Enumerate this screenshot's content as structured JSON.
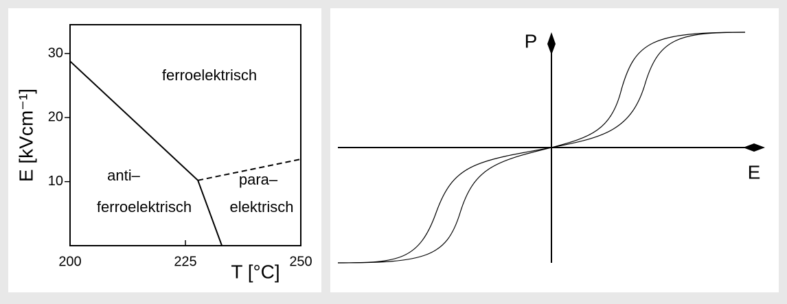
{
  "chart_data": [
    {
      "type": "line",
      "series": [
        {
          "color": "#000000",
          "style": "solid",
          "x": [
            200,
            227.7,
            232.9
          ],
          "values": [
            28.8,
            10.2,
            0
          ]
        },
        {
          "color": "#000000",
          "style": "dashed",
          "x": [
            227.7,
            250
          ],
          "values": [
            10.2,
            13.5
          ]
        }
      ],
      "xlim": [
        200,
        250
      ],
      "ylim": [
        0,
        34.5
      ],
      "xticks": [
        200,
        225,
        250
      ],
      "yticks": [
        10,
        20,
        30
      ],
      "x_label": "T [°C]",
      "y_label": "E [kVcm⁻¹]",
      "annotations": [
        "ferroelektrisch",
        "anti–",
        "ferroelektrisch",
        "para–",
        "elektrisch"
      ],
      "grid": false
    }
  ],
  "hysteresis": {
    "y_label": "P",
    "x_label": "E"
  }
}
